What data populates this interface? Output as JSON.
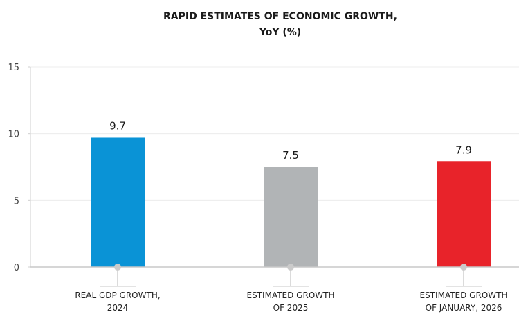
{
  "chart_data": {
    "type": "bar",
    "title": "RAPID ESTIMATES OF ECONOMIC GROWTH,",
    "subtitle": "YoY (%)",
    "xlabel": "",
    "ylabel": "",
    "ylim": [
      0,
      15
    ],
    "yticks": [
      "0",
      "5",
      "10",
      "15"
    ],
    "grid": true,
    "categories": [
      [
        "REAL GDP GROWTH,",
        "2024"
      ],
      [
        "ESTIMATED GROWTH",
        "OF 2025"
      ],
      [
        "ESTIMATED GROWTH",
        "OF JANUARY, 2026"
      ]
    ],
    "values": [
      9.7,
      7.5,
      7.9
    ],
    "value_labels": [
      "9.7",
      "7.5",
      "7.9"
    ],
    "colors": [
      "#0a93d6",
      "#b1b4b6",
      "#e8232a"
    ]
  }
}
